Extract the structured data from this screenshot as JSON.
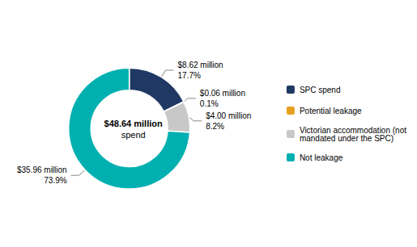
{
  "chart_data": {
    "type": "donut",
    "categories": [
      "SPC spend",
      "Potential leakage",
      "Victorian accommodation (not\nmandated under the SPC)",
      "Not leakage"
    ],
    "values": [
      17.7,
      0.1,
      8.2,
      73.9
    ],
    "value_labels": [
      "17.7%",
      "0.1%",
      "8.2%",
      "73.9%"
    ],
    "amounts": [
      "$8.62 million",
      "$0.06 million",
      "$4.00 million",
      "$35.96 million"
    ],
    "colors": [
      "#1f3864",
      "#e8a020",
      "#c8c8c8",
      "#00b0b0"
    ],
    "annotations": [
      "$48.64 million",
      "spend"
    ],
    "data_labels": true,
    "legend": "right"
  }
}
